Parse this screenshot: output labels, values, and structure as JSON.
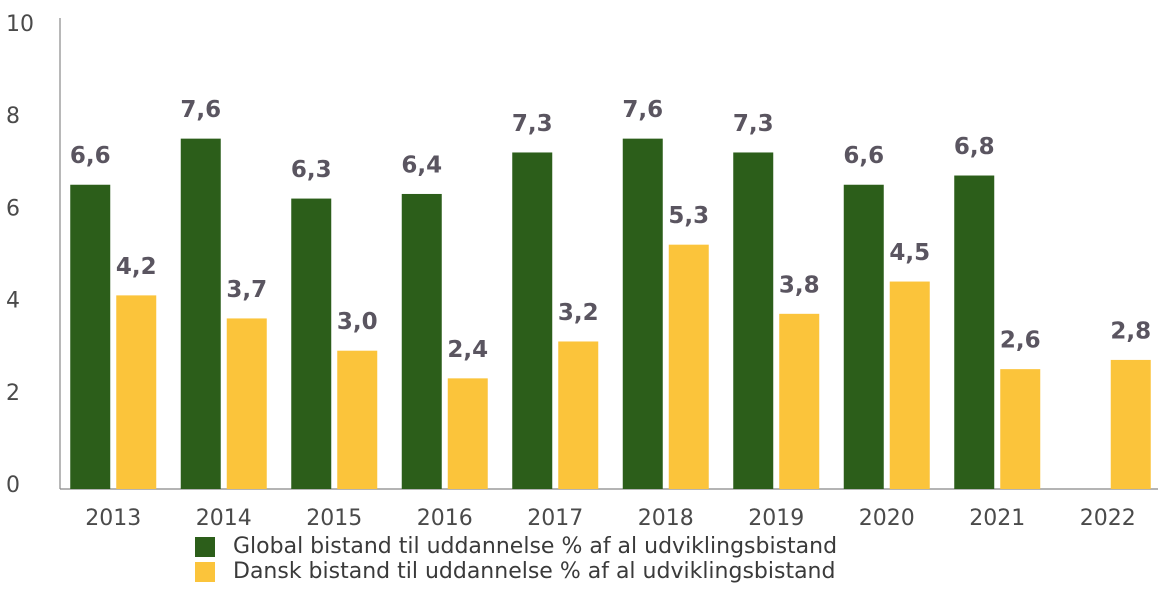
{
  "chart_data": {
    "type": "bar",
    "categories": [
      "2013",
      "2014",
      "2015",
      "2016",
      "2017",
      "2018",
      "2019",
      "2020",
      "2021",
      "2022"
    ],
    "series": [
      {
        "name": "Global bistand til uddannelse % af al udviklingsbistand",
        "color": "#2c5e1a",
        "values": [
          6.6,
          7.6,
          6.3,
          6.4,
          7.3,
          7.6,
          7.3,
          6.6,
          6.8,
          null
        ],
        "value_labels": [
          "6,6",
          "7,6",
          "6,3",
          "6,4",
          "7,3",
          "7,6",
          "7,3",
          "6,6",
          "6,8",
          null
        ]
      },
      {
        "name": "Dansk bistand til uddannelse % af al udviklingsbistand",
        "color": "#fbc43b",
        "values": [
          4.2,
          3.7,
          3.0,
          2.4,
          3.2,
          5.3,
          3.8,
          4.5,
          2.6,
          2.8
        ],
        "value_labels": [
          "4,2",
          "3,7",
          "3,0",
          "2,4",
          "3,2",
          "5,3",
          "3,8",
          "4,5",
          "2,6",
          "2,8"
        ]
      }
    ],
    "ylim": [
      0,
      10
    ],
    "yticks": [
      0,
      2,
      4,
      6,
      8,
      10
    ]
  }
}
